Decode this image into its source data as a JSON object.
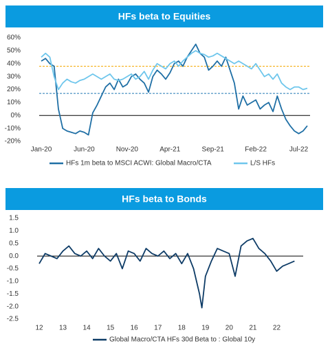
{
  "chart_data": [
    {
      "type": "line",
      "title": "HFs beta to Equities",
      "categories": [
        "Jan-20",
        null,
        null,
        null,
        null,
        null,
        null,
        null,
        null,
        null,
        "Jun-20",
        null,
        null,
        null,
        null,
        null,
        null,
        null,
        null,
        null,
        "Nov-20",
        null,
        null,
        null,
        null,
        null,
        null,
        null,
        null,
        null,
        "Apr-21",
        null,
        null,
        null,
        null,
        null,
        null,
        null,
        null,
        null,
        "Sep-21",
        null,
        null,
        null,
        null,
        null,
        null,
        null,
        null,
        null,
        "Feb-22",
        null,
        null,
        null,
        null,
        null,
        null,
        null,
        null,
        null,
        "Jul-22",
        null,
        null
      ],
      "series": [
        {
          "name": "HFs 1m beta to MSCI ACWI: Global Macro/CTA",
          "color": "#1f6fa5",
          "values": [
            42,
            44,
            40,
            38,
            5,
            -10,
            -12,
            -13,
            -14,
            -12,
            -13,
            -15,
            2,
            8,
            15,
            22,
            25,
            20,
            28,
            22,
            24,
            30,
            32,
            28,
            25,
            18,
            30,
            35,
            32,
            28,
            33,
            40,
            42,
            38,
            45,
            50,
            55,
            48,
            45,
            35,
            38,
            42,
            38,
            45,
            35,
            25,
            5,
            15,
            8,
            10,
            12,
            5,
            8,
            10,
            3,
            15,
            5,
            -3,
            -8,
            -12,
            -14,
            -12,
            -8
          ]
        },
        {
          "name": "L/S HFs",
          "color": "#6ec6ec",
          "values": [
            45,
            48,
            45,
            30,
            20,
            25,
            28,
            26,
            25,
            27,
            28,
            30,
            32,
            30,
            28,
            30,
            32,
            28,
            27,
            28,
            30,
            32,
            28,
            30,
            34,
            28,
            35,
            40,
            38,
            36,
            40,
            42,
            38,
            42,
            45,
            48,
            50,
            48,
            47,
            45,
            46,
            48,
            46,
            44,
            42,
            40,
            42,
            40,
            38,
            36,
            40,
            35,
            30,
            32,
            28,
            32,
            25,
            22,
            20,
            22,
            22,
            20,
            21
          ]
        }
      ],
      "reference_lines": [
        {
          "value": 38,
          "color": "#f5a800"
        },
        {
          "value": 17,
          "color": "#1f77b4"
        }
      ],
      "ylim": [
        -20,
        60
      ],
      "yticks": [
        {
          "value": 60,
          "label": "60%"
        },
        {
          "value": 50,
          "label": "50%"
        },
        {
          "value": 40,
          "label": "40%"
        },
        {
          "value": 30,
          "label": "30%"
        },
        {
          "value": 20,
          "label": "20%"
        },
        {
          "value": 10,
          "label": "10%"
        },
        {
          "value": 0,
          "label": "0%"
        },
        {
          "value": -10,
          "label": "-10%"
        },
        {
          "value": -20,
          "label": "-20%"
        }
      ]
    },
    {
      "type": "line",
      "title": "HFs beta to Bonds",
      "x": [
        12.0,
        12.25,
        12.5,
        12.75,
        13.0,
        13.25,
        13.5,
        13.75,
        14.0,
        14.25,
        14.5,
        14.75,
        15.0,
        15.25,
        15.5,
        15.75,
        16.0,
        16.25,
        16.5,
        16.75,
        17.0,
        17.25,
        17.5,
        17.75,
        18.0,
        18.25,
        18.5,
        18.75,
        18.85,
        19.0,
        19.25,
        19.5,
        19.75,
        20.0,
        20.25,
        20.5,
        20.75,
        21.0,
        21.25,
        21.5,
        21.75,
        22.0,
        22.25,
        22.5,
        22.75
      ],
      "series": [
        {
          "name": "Global Macro/CTA HFs 30d Beta to : Global 10y",
          "color": "#0d3b66",
          "values": [
            -0.3,
            0.1,
            0.0,
            -0.1,
            0.2,
            0.4,
            0.1,
            0.0,
            0.2,
            -0.1,
            0.3,
            0.0,
            -0.2,
            0.1,
            -0.5,
            0.2,
            0.1,
            -0.2,
            0.3,
            0.1,
            0.0,
            0.2,
            -0.1,
            0.1,
            -0.3,
            0.1,
            -0.5,
            -1.5,
            -2.05,
            -0.8,
            -0.2,
            0.3,
            0.2,
            0.1,
            -0.8,
            0.4,
            0.6,
            0.7,
            0.3,
            0.1,
            -0.2,
            -0.6,
            -0.4,
            -0.3,
            -0.2
          ]
        }
      ],
      "xlim": [
        12,
        23
      ],
      "xticks": [
        12,
        13,
        14,
        15,
        16,
        17,
        18,
        19,
        20,
        21,
        22
      ],
      "ylim": [
        -2.5,
        1.5
      ],
      "yticks": [
        1.5,
        {
          "value": 1,
          "label": "1.0"
        },
        0.5,
        {
          "value": 0,
          "label": "0.0"
        },
        -0.5,
        {
          "value": -1,
          "label": "-1.0"
        },
        -1.5,
        {
          "value": -2,
          "label": "-2.0"
        },
        -2.5
      ]
    }
  ]
}
